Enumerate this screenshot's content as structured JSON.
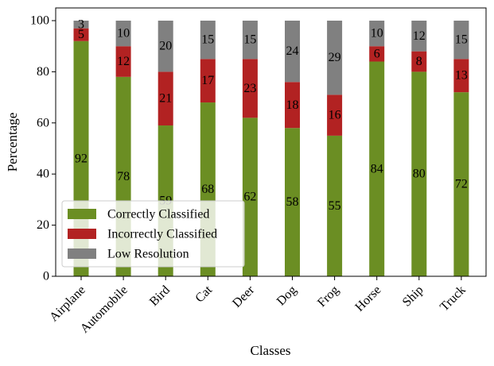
{
  "chart_data": {
    "type": "bar",
    "stacked": true,
    "title": "",
    "xlabel": "Classes",
    "ylabel": "Percentage",
    "ylim": [
      0,
      100
    ],
    "yticks": [
      0,
      20,
      40,
      60,
      80,
      100
    ],
    "grid": false,
    "legend_position": "lower-left",
    "categories": [
      "Airplane",
      "Automobile",
      "Bird",
      "Cat",
      "Deer",
      "Dog",
      "Frog",
      "Horse",
      "Ship",
      "Truck"
    ],
    "series": [
      {
        "name": "Correctly Classified",
        "color": "#6b8e23",
        "values": [
          92,
          78,
          59,
          68,
          62,
          58,
          55,
          84,
          80,
          72
        ]
      },
      {
        "name": "Incorrectly Classified",
        "color": "#b22222",
        "values": [
          5,
          12,
          21,
          17,
          23,
          18,
          16,
          6,
          8,
          13
        ]
      },
      {
        "name": "Low Resolution",
        "color": "#808080",
        "values": [
          3,
          10,
          20,
          15,
          15,
          24,
          29,
          10,
          12,
          15
        ]
      }
    ]
  }
}
